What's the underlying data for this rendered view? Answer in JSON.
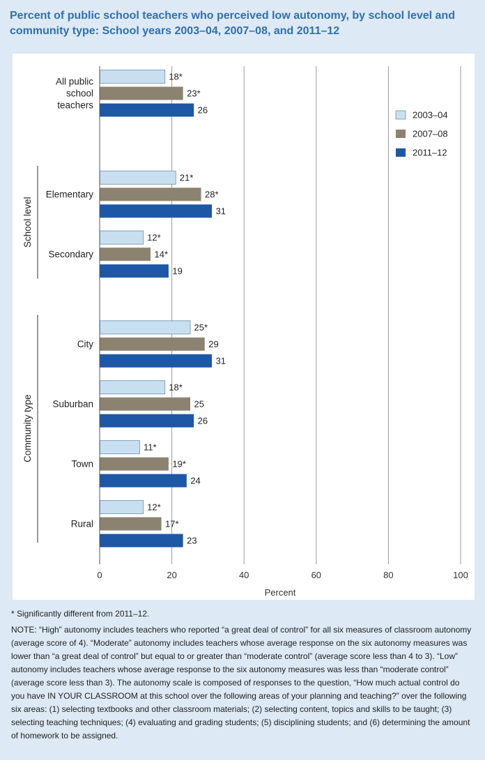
{
  "chart_data": {
    "type": "bar",
    "orientation": "horizontal",
    "title": "Percent of public school teachers who perceived low autonomy, by school level and community type: School years 2003–04, 2007–08, and 2011–12",
    "xlabel": "Percent",
    "xlim": [
      0,
      100
    ],
    "xticks": [
      0,
      20,
      40,
      60,
      80,
      100
    ],
    "grid": true,
    "legend_position": "right",
    "groups": [
      {
        "label": "",
        "categories": [
          "All public\nschool\nteachers"
        ]
      },
      {
        "label": "School level",
        "categories": [
          "Elementary",
          "Secondary"
        ]
      },
      {
        "label": "Community type",
        "categories": [
          "City",
          "Suburban",
          "Town",
          "Rural"
        ]
      }
    ],
    "categories": [
      "All public\nschool\nteachers",
      "Elementary",
      "Secondary",
      "City",
      "Suburban",
      "Town",
      "Rural"
    ],
    "series": [
      {
        "name": "2003–04",
        "color": "#c8dff0",
        "values": [
          18,
          21,
          12,
          25,
          18,
          11,
          12
        ],
        "labels": [
          "18*",
          "21*",
          "12*",
          "25*",
          "18*",
          "11*",
          "12*"
        ]
      },
      {
        "name": "2007–08",
        "color": "#8b8270",
        "values": [
          23,
          28,
          14,
          29,
          25,
          19,
          17
        ],
        "labels": [
          "23*",
          "28*",
          "14*",
          "29",
          "25",
          "19*",
          "17*"
        ]
      },
      {
        "name": "2011–12",
        "color": "#1d57a6",
        "values": [
          26,
          31,
          19,
          31,
          26,
          24,
          23
        ],
        "labels": [
          "26",
          "31",
          "19",
          "31",
          "26",
          "24",
          "23"
        ]
      }
    ]
  },
  "notes": {
    "significance": "* Significantly different from 2011–12.",
    "note": "NOTE: “High” autonomy includes teachers who reported “a great deal of control” for all six measures of classroom autonomy (average score of 4). “Moderate” autonomy includes teachers whose average response on the six autonomy measures was lower than “a great deal of control” but  equal to or greater than “moderate control” (average score less than 4 to 3). “Low” autonomy includes teachers whose average response to the six autonomy measures was less than “moderate control” (average score less than 3). The autonomy scale is composed of responses to the question, “How much actual control do you have IN YOUR CLASSROOM at this school over the following areas of your planning and teaching?” over the following six areas: (1) selecting textbooks and other classroom materials; (2) selecting content, topics and skills to be taught; (3) selecting teaching techniques; (4) evaluating and grading students; (5) disciplining students; and (6) determining the amount of homework to be assigned."
  }
}
